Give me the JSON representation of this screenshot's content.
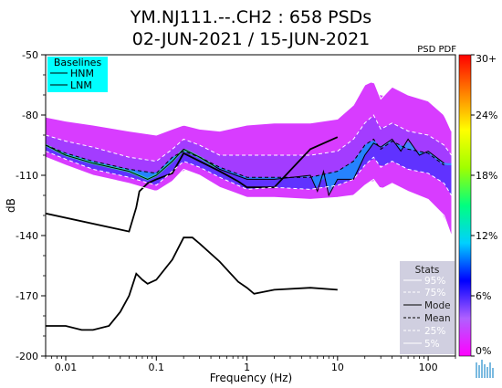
{
  "chart_data": {
    "type": "heatmap",
    "title": "YM.NJ111.--.CH2 : 658 PSDs",
    "subtitle": "02-JUN-2021 / 15-JUN-2021",
    "xlabel": "Frequency (Hz)",
    "ylabel": "dB",
    "x_scale": "log",
    "xlim": [
      0.006,
      200
    ],
    "ylim": [
      -200,
      -50
    ],
    "x_ticks": [
      0.01,
      0.1,
      1,
      10,
      100
    ],
    "x_tick_labels": [
      "0.01",
      "0.1",
      "1",
      "10",
      "100"
    ],
    "y_ticks": [
      -50,
      -80,
      -110,
      -140,
      -170,
      -200
    ],
    "y_tick_labels": [
      "-50",
      "-80",
      "-110",
      "-140",
      "-170",
      "-200"
    ],
    "colorbar": {
      "label": "PSD PDF",
      "ticks": [
        0,
        6,
        12,
        18,
        24,
        30
      ],
      "tick_labels": [
        "0%",
        "6%",
        "12%",
        "18%",
        "24%",
        "30+"
      ],
      "colors": [
        "#ff00ff",
        "#b060ff",
        "#0000ff",
        "#00d0ff",
        "#00ff80",
        "#a0ff00",
        "#ffff00",
        "#ff8000",
        "#ff0000"
      ]
    },
    "baselines_legend": {
      "title": "Baselines",
      "items": [
        "HNM",
        "LNM"
      ],
      "background": "#00ffff"
    },
    "stats_legend": {
      "title": "Stats",
      "items": [
        "95%",
        "75%",
        "Mode",
        "Mean",
        "25%",
        "5%"
      ],
      "background": "#d0cfe0"
    },
    "series": [
      {
        "name": "HNM",
        "x": [
          0.006,
          0.05,
          0.06,
          0.065,
          0.08,
          0.1,
          0.15,
          0.2,
          0.3,
          0.5,
          0.8,
          1,
          2,
          5,
          10
        ],
        "y": [
          -129,
          -138,
          -126,
          -118,
          -114,
          -112,
          -109,
          -99,
          -103,
          -108,
          -113,
          -116,
          -116,
          -97,
          -91
        ]
      },
      {
        "name": "LNM",
        "x": [
          0.006,
          0.01,
          0.015,
          0.02,
          0.03,
          0.04,
          0.05,
          0.06,
          0.07,
          0.08,
          0.1,
          0.15,
          0.2,
          0.25,
          0.3,
          0.5,
          0.8,
          1,
          1.2,
          2,
          5,
          10
        ],
        "y": [
          -185,
          -185,
          -187,
          -187,
          -185,
          -178,
          -170,
          -159,
          -162,
          -164,
          -162,
          -152,
          -141,
          -141,
          -144,
          -153,
          -163,
          -166,
          -169,
          -167,
          -166,
          -167
        ]
      },
      {
        "name": "95%",
        "x": [
          0.006,
          0.01,
          0.02,
          0.05,
          0.1,
          0.15,
          0.2,
          0.3,
          0.5,
          1,
          2,
          5,
          10,
          15,
          20,
          25,
          30,
          40,
          60,
          100,
          150,
          180
        ],
        "y": [
          -81,
          -83,
          -85,
          -88,
          -90,
          -87,
          -85,
          -87,
          -88,
          -85,
          -84,
          -84,
          -82,
          -75,
          -65,
          -63,
          -72,
          -66,
          -70,
          -73,
          -80,
          -88
        ]
      },
      {
        "name": "75%",
        "x": [
          0.006,
          0.01,
          0.02,
          0.05,
          0.1,
          0.15,
          0.2,
          0.3,
          0.5,
          1,
          2,
          5,
          10,
          15,
          20,
          25,
          30,
          40,
          60,
          100,
          150,
          180
        ],
        "y": [
          -90,
          -93,
          -96,
          -101,
          -103,
          -97,
          -92,
          -95,
          -100,
          -100,
          -100,
          -100,
          -98,
          -92,
          -84,
          -80,
          -87,
          -84,
          -88,
          -90,
          -95,
          -100
        ]
      },
      {
        "name": "Mode",
        "x": [
          0.006,
          0.01,
          0.02,
          0.05,
          0.08,
          0.1,
          0.15,
          0.2,
          0.3,
          0.5,
          1,
          2,
          5,
          6,
          7,
          8,
          10,
          15,
          20,
          25,
          30,
          40,
          50,
          60,
          80,
          100,
          150
        ],
        "y": [
          -95,
          -100,
          -104,
          -108,
          -112,
          -110,
          -103,
          -97,
          -101,
          -107,
          -112,
          -112,
          -110,
          -118,
          -108,
          -120,
          -112,
          -112,
          -100,
          -94,
          -96,
          -92,
          -98,
          -92,
          -100,
          -98,
          -104
        ]
      },
      {
        "name": "Mean",
        "x": [
          0.006,
          0.01,
          0.02,
          0.05,
          0.1,
          0.15,
          0.2,
          0.3,
          0.5,
          1,
          2,
          5,
          10,
          15,
          20,
          25,
          30,
          40,
          60,
          100,
          150
        ],
        "y": [
          -95,
          -99,
          -103,
          -107,
          -109,
          -101,
          -98,
          -101,
          -106,
          -111,
          -111,
          -111,
          -108,
          -103,
          -95,
          -92,
          -97,
          -93,
          -97,
          -99,
          -105
        ]
      },
      {
        "name": "25%",
        "x": [
          0.006,
          0.01,
          0.02,
          0.05,
          0.1,
          0.15,
          0.2,
          0.3,
          0.5,
          1,
          2,
          5,
          10,
          15,
          20,
          25,
          30,
          40,
          60,
          100,
          150,
          180
        ],
        "y": [
          -98,
          -102,
          -107,
          -111,
          -115,
          -108,
          -103,
          -106,
          -111,
          -117,
          -116,
          -117,
          -115,
          -112,
          -105,
          -101,
          -106,
          -103,
          -107,
          -109,
          -114,
          -120
        ]
      },
      {
        "name": "5%",
        "x": [
          0.006,
          0.01,
          0.02,
          0.05,
          0.1,
          0.15,
          0.2,
          0.3,
          0.5,
          1,
          2,
          5,
          10,
          15,
          20,
          25,
          30,
          40,
          60,
          100,
          150,
          180
        ],
        "y": [
          -101,
          -105,
          -110,
          -114,
          -118,
          -113,
          -107,
          -110,
          -116,
          -121,
          -121,
          -122,
          -121,
          -120,
          -115,
          -112,
          -117,
          -114,
          -118,
          -122,
          -130,
          -140
        ]
      }
    ],
    "density_colors": [
      "#d83cff",
      "#9a3cff",
      "#2a2aff",
      "#00b8ff",
      "#30ff90"
    ]
  }
}
